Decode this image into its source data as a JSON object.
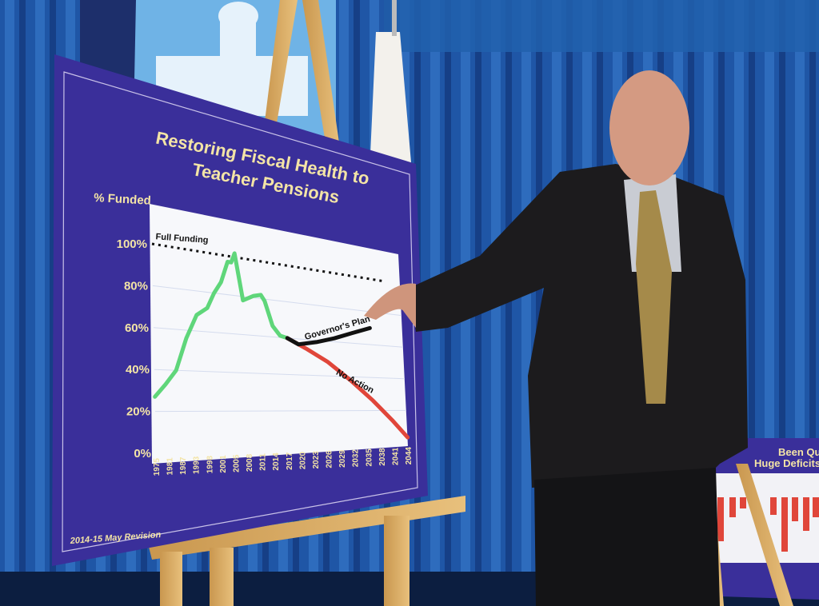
{
  "board": {
    "title_line1": "Restoring Fiscal Health to",
    "title_line2": "Teacher Pensions",
    "footer": "2014-15 May Revision",
    "colors": {
      "board": "#3a2f9a",
      "text": "#f3e4a6",
      "historical": "#5fd67a",
      "no_action": "#e0463a",
      "governors_plan": "#111111"
    }
  },
  "chart_data": {
    "type": "line",
    "title": "Restoring Fiscal Health to Teacher Pensions",
    "ylabel": "% Funded",
    "xlabel": "",
    "ylim": [
      0,
      100
    ],
    "xlim": [
      1975,
      2044
    ],
    "y_ticks": [
      "0%",
      "20%",
      "40%",
      "60%",
      "80%",
      "100%"
    ],
    "x_ticks": [
      "1975",
      "1981",
      "1987",
      "1993",
      "1998",
      "2001",
      "2005",
      "2008",
      "2011",
      "2014",
      "2017",
      "2020",
      "2023",
      "2026",
      "2029",
      "2032",
      "2035",
      "2038",
      "2041",
      "2044"
    ],
    "grid": true,
    "reference_line": {
      "label": "Full Funding",
      "value": 100
    },
    "series": [
      {
        "name": "",
        "color": "#5fd67a",
        "x": [
          1975,
          1978,
          1981,
          1984,
          1987,
          1990,
          1992,
          1994,
          1996,
          1997,
          1998,
          2000,
          2003,
          2005,
          2006,
          2008,
          2010,
          2012
        ],
        "y": [
          27,
          33,
          40,
          56,
          68,
          72,
          80,
          86,
          97,
          97,
          102,
          78,
          81,
          82,
          79,
          66,
          61,
          60
        ]
      },
      {
        "name": "No Action",
        "color": "#e0463a",
        "x": [
          2012,
          2017,
          2023,
          2029,
          2035,
          2040,
          2044
        ],
        "y": [
          60,
          55,
          48,
          38,
          26,
          14,
          3
        ]
      },
      {
        "name": "Governor's Plan",
        "color": "#111111",
        "x": [
          2012,
          2015,
          2020,
          2025,
          2030,
          2035
        ],
        "y": [
          60,
          57,
          59,
          62,
          66,
          70
        ]
      }
    ]
  },
  "background_board": {
    "title_fragment_1": "Been Qui",
    "title_fragment_2": "Huge Deficits"
  }
}
